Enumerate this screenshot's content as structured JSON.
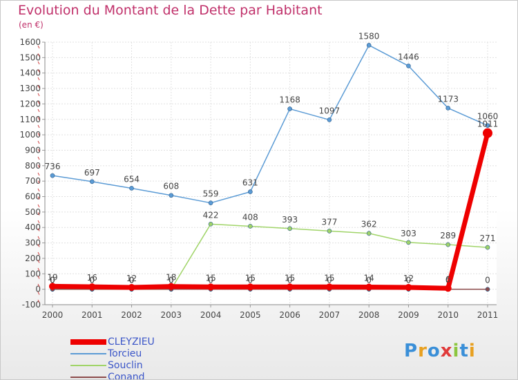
{
  "title": "Evolution du Montant de la Dette par Habitant",
  "unit_label": "(en €)",
  "logo": {
    "text": "Proxiti",
    "colors": [
      "#3a8fd8",
      "#e8a020",
      "#3a8fd8",
      "#e03a3a",
      "#8cc63f",
      "#3a8fd8",
      "#e8a020"
    ]
  },
  "chart_data": {
    "type": "line",
    "x": [
      "2000",
      "2001",
      "2002",
      "2003",
      "2004",
      "2005",
      "2006",
      "2007",
      "2008",
      "2009",
      "2010",
      "2011"
    ],
    "ylim": [
      -100,
      1600
    ],
    "yticks": [
      "-100",
      "0",
      "100",
      "200",
      "300",
      "400",
      "500",
      "600",
      "700",
      "800",
      "900",
      "1000",
      "1100",
      "1200",
      "1300",
      "1400",
      "1500",
      "1600"
    ],
    "grid": true,
    "legend_position": "bottom-left",
    "series": [
      {
        "name": "Torcieu",
        "color": "#5b9bd5",
        "values": [
          736,
          697,
          654,
          608,
          559,
          631,
          1168,
          1097,
          1580,
          1446,
          1173,
          1060
        ],
        "labels": [
          "736",
          "697",
          "654",
          "608",
          "559",
          "631",
          "1168",
          "1097",
          "1580",
          "1446",
          "1173",
          "1060"
        ]
      },
      {
        "name": "Souclin",
        "color": "#a0d468",
        "values": [
          0,
          0,
          0,
          0,
          422,
          408,
          393,
          377,
          362,
          303,
          289,
          271
        ],
        "labels": [
          "0",
          "0",
          "0",
          "0",
          "422",
          "408",
          "393",
          "377",
          "362",
          "303",
          "289",
          "271"
        ]
      },
      {
        "name": "Conand",
        "color": "#8b4a4a",
        "values": [
          0,
          0,
          0,
          0,
          0,
          0,
          0,
          0,
          0,
          0,
          0,
          0
        ],
        "labels": [
          "0",
          "0",
          "0",
          "0",
          "0",
          "0",
          "0",
          "0",
          "0",
          "0",
          "0",
          "0"
        ]
      },
      {
        "name": "CLEYZIEU",
        "color": "#ee0000",
        "thick": true,
        "values": [
          19,
          16,
          12,
          18,
          15,
          15,
          15,
          15,
          14,
          12,
          6,
          1011
        ],
        "labels": [
          "19",
          "16",
          "12",
          "18",
          "15",
          "15",
          "15",
          "15",
          "14",
          "12",
          "6",
          "1011"
        ]
      }
    ],
    "legend": [
      "CLEYZIEU",
      "Torcieu",
      "Souclin",
      "Conand"
    ]
  }
}
